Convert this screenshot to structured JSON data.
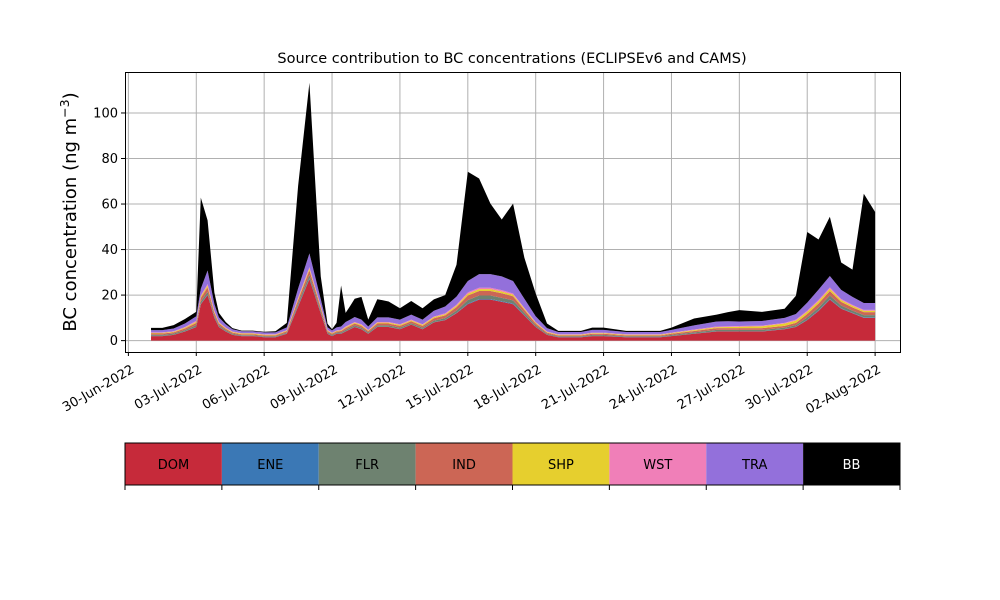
{
  "chart_data": {
    "type": "area",
    "stacked": true,
    "title": "Source contribution to BC concentrations (ECLIPSEv6 and CAMS)",
    "ylabel": "BC concentration (ng m",
    "ylabel_sup": "−3",
    "ylabel_close": ")",
    "xlabel": "",
    "xlim": [
      "2022-06-30",
      "2022-08-02"
    ],
    "ylim": [
      -5,
      118
    ],
    "grid": true,
    "yticks": [
      0,
      20,
      40,
      60,
      80,
      100
    ],
    "xticks": [
      "30-Jun-2022",
      "03-Jul-2022",
      "06-Jul-2022",
      "09-Jul-2022",
      "12-Jul-2022",
      "15-Jul-2022",
      "18-Jul-2022",
      "21-Jul-2022",
      "24-Jul-2022",
      "27-Jul-2022",
      "30-Jul-2022",
      "02-Aug-2022"
    ],
    "start_date": "2022-07-01",
    "x_days": [
      0,
      0.5,
      1,
      1.5,
      2,
      2.2,
      2.5,
      2.8,
      3,
      3.3,
      3.6,
      4,
      4.5,
      5,
      5.5,
      6,
      6.5,
      7,
      7.5,
      7.8,
      8,
      8.2,
      8.4,
      8.6,
      8.8,
      9,
      9.3,
      9.6,
      10,
      10.5,
      11,
      11.5,
      12,
      12.5,
      13,
      13.5,
      14,
      14.5,
      15,
      15.5,
      16,
      16.5,
      17,
      17.5,
      18,
      18.5,
      19,
      19.5,
      20,
      21,
      22,
      22.5,
      23,
      24,
      25,
      25.5,
      26,
      27,
      28,
      28.5,
      29,
      29.5,
      30,
      30.5,
      31,
      31.5,
      32
    ],
    "series": [
      {
        "name": "DOM",
        "color": "#c62a3a",
        "values": [
          2,
          2,
          2.5,
          4,
          6,
          16,
          20,
          10,
          6,
          4,
          2.5,
          2,
          2,
          1.5,
          1.5,
          3,
          15,
          27,
          12,
          3,
          2,
          3,
          3,
          4,
          5,
          6,
          5,
          3,
          6,
          6,
          5,
          7,
          5,
          8,
          9,
          12,
          16,
          18,
          18,
          17,
          16,
          11,
          6,
          2.5,
          1.5,
          1.5,
          1.5,
          2,
          2,
          1.5,
          1.5,
          1.5,
          2,
          3,
          4,
          4,
          4,
          4,
          5,
          6,
          9,
          13,
          18,
          14,
          12,
          10,
          10
        ]
      },
      {
        "name": "ENE",
        "color": "#3b78b5",
        "values": [
          0.1,
          0.1,
          0.1,
          0.1,
          0.1,
          0.2,
          0.2,
          0.2,
          0.1,
          0.1,
          0.1,
          0.1,
          0.1,
          0.1,
          0.1,
          0.1,
          0.3,
          0.4,
          0.2,
          0.1,
          0.1,
          0.1,
          0.1,
          0.1,
          0.1,
          0.1,
          0.1,
          0.1,
          0.1,
          0.1,
          0.1,
          0.1,
          0.1,
          0.1,
          0.1,
          0.2,
          0.3,
          0.3,
          0.3,
          0.3,
          0.3,
          0.2,
          0.1,
          0.1,
          0.1,
          0.1,
          0.1,
          0.1,
          0.1,
          0.1,
          0.1,
          0.1,
          0.1,
          0.1,
          0.1,
          0.1,
          0.1,
          0.1,
          0.1,
          0.1,
          0.2,
          0.3,
          0.3,
          0.2,
          0.2,
          0.2,
          0.2
        ]
      },
      {
        "name": "FLR",
        "color": "#6e8270",
        "values": [
          0.5,
          0.5,
          0.5,
          0.5,
          0.7,
          1,
          1.2,
          0.8,
          0.6,
          0.5,
          0.4,
          0.3,
          0.3,
          0.3,
          0.3,
          0.4,
          1,
          1.5,
          1,
          0.5,
          0.4,
          0.4,
          0.5,
          0.6,
          0.6,
          0.6,
          0.6,
          0.5,
          0.6,
          0.6,
          0.6,
          0.6,
          0.6,
          0.7,
          0.8,
          1,
          1.5,
          1.5,
          1.5,
          1.5,
          1.4,
          1,
          0.6,
          0.4,
          0.3,
          0.3,
          0.3,
          0.4,
          0.4,
          0.3,
          0.3,
          0.3,
          0.4,
          0.5,
          0.6,
          0.6,
          0.6,
          0.6,
          0.6,
          0.7,
          1,
          1.2,
          1.5,
          1.2,
          1,
          1,
          1
        ]
      },
      {
        "name": "IND",
        "color": "#cc6655",
        "values": [
          0.5,
          0.5,
          0.5,
          0.7,
          1,
          1.5,
          2,
          1.2,
          0.8,
          0.6,
          0.5,
          0.4,
          0.4,
          0.4,
          0.4,
          0.6,
          1.5,
          2,
          1.2,
          0.6,
          0.5,
          0.5,
          0.6,
          0.8,
          0.8,
          0.8,
          0.8,
          0.6,
          0.8,
          0.8,
          0.8,
          0.8,
          0.8,
          1,
          1.2,
          1.5,
          2,
          2,
          2,
          2,
          1.8,
          1.3,
          0.8,
          0.5,
          0.4,
          0.4,
          0.4,
          0.5,
          0.5,
          0.4,
          0.4,
          0.4,
          0.5,
          0.6,
          0.8,
          0.8,
          0.8,
          0.8,
          0.8,
          1,
          1.5,
          1.8,
          2,
          1.6,
          1.4,
          1.3,
          1.3
        ]
      },
      {
        "name": "SHP",
        "color": "#e6cf2e",
        "values": [
          0.3,
          0.3,
          0.3,
          0.4,
          0.5,
          0.6,
          0.8,
          0.5,
          0.4,
          0.3,
          0.3,
          0.3,
          0.3,
          0.3,
          0.3,
          0.3,
          0.6,
          0.8,
          0.5,
          0.3,
          0.3,
          0.3,
          0.3,
          0.4,
          0.4,
          0.4,
          0.4,
          0.3,
          0.4,
          0.4,
          0.4,
          0.4,
          0.4,
          0.5,
          0.5,
          0.6,
          0.8,
          0.8,
          0.8,
          0.8,
          0.7,
          0.5,
          0.4,
          0.3,
          0.3,
          0.3,
          0.3,
          0.3,
          0.3,
          0.3,
          0.3,
          0.3,
          0.3,
          0.4,
          0.4,
          0.5,
          0.6,
          0.8,
          1,
          1,
          1,
          1,
          1,
          0.8,
          0.7,
          0.6,
          0.6
        ]
      },
      {
        "name": "WST",
        "color": "#f07fb8",
        "values": [
          0.2,
          0.2,
          0.2,
          0.3,
          0.4,
          0.5,
          0.6,
          0.4,
          0.3,
          0.2,
          0.2,
          0.2,
          0.2,
          0.2,
          0.2,
          0.2,
          0.5,
          0.6,
          0.4,
          0.2,
          0.2,
          0.2,
          0.2,
          0.3,
          0.3,
          0.3,
          0.3,
          0.2,
          0.3,
          0.3,
          0.3,
          0.3,
          0.3,
          0.3,
          0.4,
          0.5,
          0.6,
          0.6,
          0.6,
          0.6,
          0.5,
          0.4,
          0.3,
          0.2,
          0.2,
          0.2,
          0.2,
          0.2,
          0.2,
          0.2,
          0.2,
          0.2,
          0.2,
          0.3,
          0.3,
          0.3,
          0.3,
          0.3,
          0.3,
          0.4,
          0.5,
          0.6,
          0.6,
          0.5,
          0.4,
          0.4,
          0.4
        ]
      },
      {
        "name": "TRA",
        "color": "#9370db",
        "values": [
          1,
          1,
          1.2,
          1.5,
          2,
          3,
          6,
          3,
          2,
          1.5,
          1,
          0.8,
          0.8,
          0.8,
          0.8,
          1.2,
          4,
          6,
          3,
          1.2,
          1,
          1.3,
          1.5,
          2,
          2,
          2.2,
          2,
          1.5,
          2,
          2,
          2,
          2.2,
          2,
          2.5,
          3,
          3.5,
          5,
          6,
          6,
          6,
          5.5,
          4,
          2.5,
          1.5,
          1,
          1,
          1,
          1.2,
          1.2,
          1,
          1,
          1,
          1.2,
          1.8,
          2.2,
          2.2,
          2,
          2,
          2.2,
          2.5,
          3.5,
          4.5,
          5,
          4,
          3.5,
          3,
          3
        ]
      },
      {
        "name": "BB",
        "color": "#000000",
        "values": [
          1,
          1,
          1.5,
          2,
          2,
          40,
          22,
          5,
          2,
          1,
          0.5,
          0.3,
          0.3,
          0.3,
          0.5,
          2,
          45,
          75,
          10,
          1.5,
          0.5,
          2,
          18,
          4,
          6,
          8,
          10,
          3,
          8,
          7,
          5,
          6,
          5,
          5,
          5,
          14,
          48,
          42,
          31,
          25,
          34,
          18,
          10,
          2,
          0.5,
          0.5,
          0.5,
          1,
          1,
          0.5,
          0.5,
          0.5,
          1,
          3,
          3,
          4,
          5,
          4,
          4,
          8,
          31,
          22,
          26,
          12,
          12,
          48,
          40
        ]
      }
    ]
  }
}
